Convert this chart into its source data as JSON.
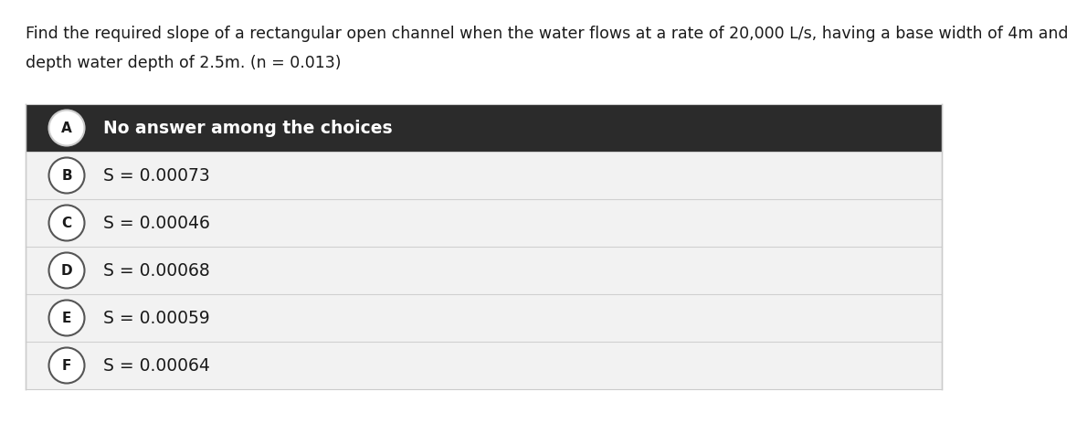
{
  "question_line1": "Find the required slope of a rectangular open channel when the water flows at a rate of 20,000 L/s, having a base width of 4m and",
  "question_line2": "depth water depth of 2.5m. (n = 0.013)",
  "choices": [
    {
      "letter": "A",
      "text": "No answer among the choices",
      "selected": true
    },
    {
      "letter": "B",
      "text": "S = 0.00073",
      "selected": false
    },
    {
      "letter": "C",
      "text": "S = 0.00046",
      "selected": false
    },
    {
      "letter": "D",
      "text": "S = 0.00068",
      "selected": false
    },
    {
      "letter": "E",
      "text": "S = 0.00059",
      "selected": false
    },
    {
      "letter": "F",
      "text": "S = 0.00064",
      "selected": false
    }
  ],
  "selected_bg": "#2b2b2b",
  "selected_text_color": "#ffffff",
  "unselected_bg": "#f2f2f2",
  "unselected_text_color": "#1a1a1a",
  "question_color": "#1a1a1a",
  "question_fontsize": 12.5,
  "choice_fontsize": 13.5,
  "letter_fontsize": 11,
  "circle_selected_facecolor": "#ffffff",
  "circle_selected_textcolor": "#1a1a1a",
  "circle_unselected_facecolor": "#ffffff",
  "circle_unselected_textcolor": "#1a1a1a",
  "circle_border_color": "#555555",
  "circle_border_selected": "#cccccc",
  "figure_bg": "#ffffff",
  "separator_color": "#d0d0d0",
  "outer_border_color": "#cccccc"
}
